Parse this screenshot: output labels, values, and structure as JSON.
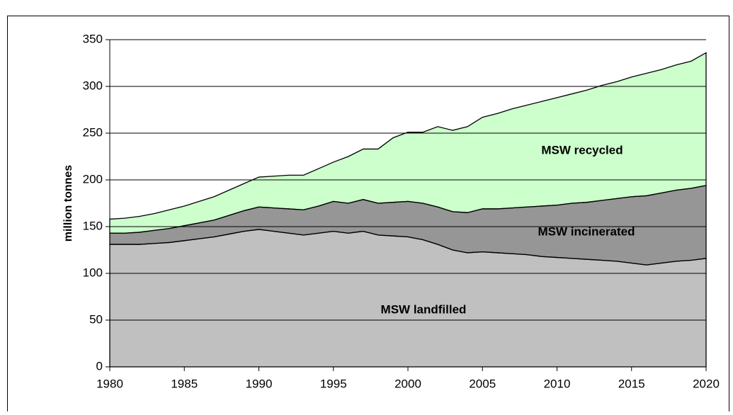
{
  "chart_data": {
    "type": "stacked_area",
    "ylabel": "million tonnes",
    "x": [
      1980,
      1981,
      1982,
      1983,
      1984,
      1985,
      1986,
      1987,
      1988,
      1989,
      1990,
      1991,
      1992,
      1993,
      1994,
      1995,
      1996,
      1997,
      1998,
      1999,
      2000,
      2001,
      2002,
      2003,
      2004,
      2005,
      2006,
      2007,
      2008,
      2009,
      2010,
      2011,
      2012,
      2013,
      2014,
      2015,
      2016,
      2017,
      2018,
      2019,
      2020
    ],
    "series": [
      {
        "name": "MSW landfilled",
        "color": "#c0c0c0",
        "values": [
          131,
          131,
          131,
          132,
          133,
          135,
          137,
          139,
          142,
          145,
          147,
          145,
          143,
          141,
          143,
          145,
          143,
          145,
          141,
          140,
          139,
          136,
          131,
          125,
          122,
          123,
          122,
          121,
          120,
          118,
          117,
          116,
          115,
          114,
          113,
          111,
          109,
          111,
          113,
          114,
          116
        ]
      },
      {
        "name": "MSW incinerated",
        "color": "#969696",
        "values": [
          12,
          12,
          13,
          14,
          15,
          16,
          17,
          18,
          20,
          22,
          24,
          25,
          26,
          27,
          29,
          32,
          32,
          34,
          34,
          36,
          38,
          39,
          40,
          41,
          43,
          46,
          47,
          49,
          51,
          54,
          56,
          59,
          61,
          64,
          67,
          71,
          74,
          75,
          76,
          77,
          78
        ]
      },
      {
        "name": "MSW recycled",
        "color": "#ccffcc",
        "values": [
          15,
          16,
          17,
          18,
          20,
          21,
          23,
          25,
          27,
          29,
          32,
          34,
          36,
          37,
          40,
          42,
          50,
          54,
          58,
          69,
          74,
          76,
          86,
          87,
          92,
          98,
          102,
          106,
          109,
          112,
          115,
          117,
          120,
          123,
          125,
          128,
          131,
          132,
          134,
          136,
          142
        ]
      }
    ],
    "xlim": [
      1980,
      2020
    ],
    "xticks": [
      1980,
      1985,
      1990,
      1995,
      2000,
      2005,
      2010,
      2015,
      2020
    ],
    "ylim": [
      0,
      350
    ],
    "yticks": [
      0,
      50,
      100,
      150,
      200,
      250,
      300,
      350
    ],
    "grid": true
  }
}
